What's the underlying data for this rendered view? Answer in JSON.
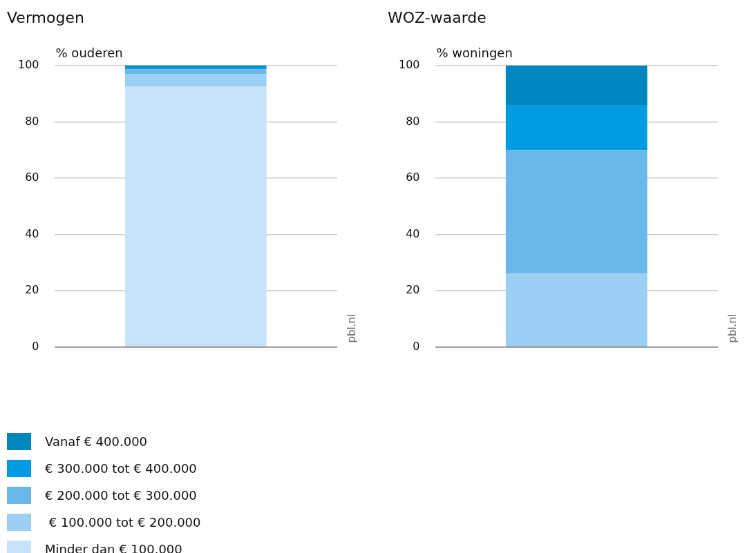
{
  "chart_data": [
    {
      "type": "bar",
      "title": "Vermogen",
      "ylabel": "% ouderen",
      "categories": [
        null
      ],
      "stacked": true,
      "ylim": [
        0,
        100
      ],
      "yticks": [
        0,
        20,
        40,
        60,
        80,
        100
      ],
      "grid": "y",
      "legend": "bottom left",
      "annotations": [
        "pbl.nl"
      ],
      "series": [
        {
          "name": "Minder dan € 100.000",
          "color": "#c8e3f7",
          "values": [
            92.5
          ]
        },
        {
          "name": " € 100.000 tot € 200.000",
          "color": "#9dcef3",
          "values": [
            4.5
          ]
        },
        {
          "name": "€ 200.000 tot € 300.000",
          "color": "#6ab8ea",
          "values": [
            1.7
          ]
        },
        {
          "name": "€ 300.000 tot € 400.000",
          "color": "#009be0",
          "values": [
            0.8
          ]
        },
        {
          "name": "Vanaf € 400.000",
          "color": "#0086bf",
          "values": [
            0.5
          ]
        }
      ]
    },
    {
      "type": "bar",
      "title": "WOZ-waarde",
      "ylabel": "% woningen",
      "categories": [
        null
      ],
      "stacked": true,
      "ylim": [
        0,
        100
      ],
      "yticks": [
        0,
        20,
        40,
        60,
        80,
        100
      ],
      "grid": "y",
      "annotations": [
        "pbl.nl"
      ],
      "series": [
        {
          "color": "#c8e3f7",
          "values": [
            0
          ]
        },
        {
          "color": "#9dcef3",
          "values": [
            26
          ]
        },
        {
          "color": "#6ab8ea",
          "values": [
            44
          ]
        },
        {
          "color": "#009be0",
          "values": [
            16
          ]
        },
        {
          "color": "#0086bf",
          "values": [
            14
          ]
        }
      ]
    }
  ]
}
